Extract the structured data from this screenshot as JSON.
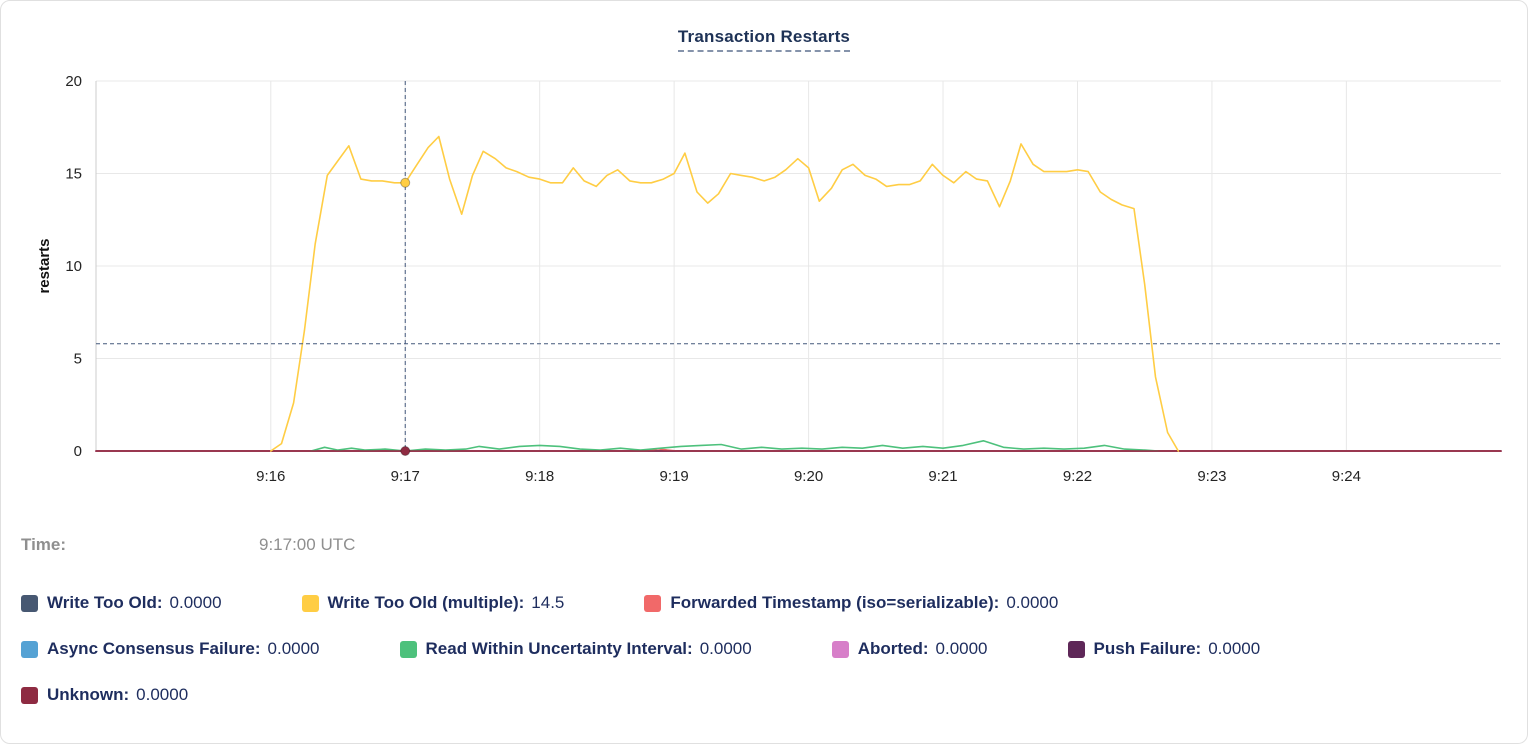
{
  "time_readout": {
    "label": "Time:",
    "value": "9:17:00 UTC"
  },
  "legend": {
    "rows": [
      [
        {
          "label": "Write Too Old:",
          "value": "0.0000",
          "color": "#475872"
        },
        {
          "label": "Write Too Old (multiple):",
          "value": "14.5",
          "color": "#FFCD44"
        },
        {
          "label": "Forwarded Timestamp (iso=serializable):",
          "value": "0.0000",
          "color": "#F16969"
        }
      ],
      [
        {
          "label": "Async Consensus Failure:",
          "value": "0.0000",
          "color": "#55A2D4"
        },
        {
          "label": "Read Within Uncertainty Interval:",
          "value": "0.0000",
          "color": "#4DC17C"
        },
        {
          "label": "Aborted:",
          "value": "0.0000",
          "color": "#D77FC9"
        },
        {
          "label": "Push Failure:",
          "value": "0.0000",
          "color": "#5E2758"
        }
      ],
      [
        {
          "label": "Unknown:",
          "value": "0.0000",
          "color": "#8E2B42"
        }
      ]
    ]
  },
  "chart_data": {
    "type": "line",
    "title": "Transaction Restarts",
    "xlabel": "",
    "ylabel": "restarts",
    "ylim": [
      0,
      20
    ],
    "yticks": [
      0,
      5,
      10,
      15,
      20
    ],
    "x_domain_minutes": [
      14.7,
      25.15
    ],
    "xticks": [
      {
        "label": "9:16",
        "minute": 16
      },
      {
        "label": "9:17",
        "minute": 17
      },
      {
        "label": "9:18",
        "minute": 18
      },
      {
        "label": "9:19",
        "minute": 19
      },
      {
        "label": "9:20",
        "minute": 20
      },
      {
        "label": "9:21",
        "minute": 21
      },
      {
        "label": "9:22",
        "minute": 22
      },
      {
        "label": "9:23",
        "minute": 23
      },
      {
        "label": "9:24",
        "minute": 24
      }
    ],
    "grid": true,
    "legend_position": "bottom",
    "crosshair": {
      "time": "9:17",
      "minute": 17,
      "hline_value": 5.8,
      "color": "#44587C",
      "points": [
        {
          "series": "Write Too Old (multiple)",
          "minute": 17,
          "value": 14.5,
          "color": "#FFCD44"
        },
        {
          "series": "Unknown",
          "minute": 17,
          "value": 0,
          "color": "#8E2B42"
        }
      ]
    },
    "series": [
      {
        "name": "Write Too Old",
        "color": "#475872",
        "points": [
          [
            14.7,
            0
          ],
          [
            25.15,
            0
          ]
        ]
      },
      {
        "name": "Async Consensus Failure",
        "color": "#55A2D4",
        "points": [
          [
            14.7,
            0
          ],
          [
            25.15,
            0
          ]
        ]
      },
      {
        "name": "Aborted",
        "color": "#D77FC9",
        "points": [
          [
            14.7,
            0
          ],
          [
            25.15,
            0
          ]
        ]
      },
      {
        "name": "Push Failure",
        "color": "#5E2758",
        "points": [
          [
            14.7,
            0
          ],
          [
            25.15,
            0
          ]
        ]
      },
      {
        "name": "Forwarded Timestamp (iso=serializable)",
        "color": "#F16969",
        "points": [
          [
            14.7,
            0
          ],
          [
            18.8,
            0
          ],
          [
            18.88,
            0.12
          ],
          [
            18.95,
            0.05
          ],
          [
            19.02,
            0
          ],
          [
            25.15,
            0
          ]
        ]
      },
      {
        "name": "Read Within Uncertainty Interval",
        "color": "#4DC17C",
        "points": [
          [
            16.3,
            0
          ],
          [
            16.4,
            0.2
          ],
          [
            16.5,
            0.05
          ],
          [
            16.6,
            0.15
          ],
          [
            16.7,
            0.05
          ],
          [
            16.85,
            0.1
          ],
          [
            17.0,
            0
          ],
          [
            17.15,
            0.1
          ],
          [
            17.3,
            0.05
          ],
          [
            17.45,
            0.1
          ],
          [
            17.55,
            0.25
          ],
          [
            17.7,
            0.1
          ],
          [
            17.85,
            0.25
          ],
          [
            18.0,
            0.3
          ],
          [
            18.15,
            0.25
          ],
          [
            18.3,
            0.1
          ],
          [
            18.45,
            0.05
          ],
          [
            18.6,
            0.15
          ],
          [
            18.75,
            0.05
          ],
          [
            18.9,
            0.15
          ],
          [
            19.05,
            0.25
          ],
          [
            19.2,
            0.3
          ],
          [
            19.35,
            0.35
          ],
          [
            19.5,
            0.1
          ],
          [
            19.65,
            0.2
          ],
          [
            19.8,
            0.1
          ],
          [
            19.95,
            0.15
          ],
          [
            20.1,
            0.1
          ],
          [
            20.25,
            0.2
          ],
          [
            20.4,
            0.15
          ],
          [
            20.55,
            0.3
          ],
          [
            20.7,
            0.15
          ],
          [
            20.85,
            0.25
          ],
          [
            21.0,
            0.15
          ],
          [
            21.15,
            0.3
          ],
          [
            21.3,
            0.55
          ],
          [
            21.45,
            0.2
          ],
          [
            21.6,
            0.1
          ],
          [
            21.75,
            0.15
          ],
          [
            21.9,
            0.1
          ],
          [
            22.05,
            0.15
          ],
          [
            22.2,
            0.3
          ],
          [
            22.35,
            0.1
          ],
          [
            22.5,
            0.05
          ],
          [
            22.6,
            0
          ]
        ]
      },
      {
        "name": "Unknown",
        "color": "#8E2B42",
        "points": [
          [
            14.7,
            0
          ],
          [
            25.15,
            0
          ]
        ]
      },
      {
        "name": "Write Too Old (multiple)",
        "color": "#FFCD44",
        "points": [
          [
            16.0,
            0
          ],
          [
            16.08,
            0.4
          ],
          [
            16.17,
            2.6
          ],
          [
            16.25,
            6.5
          ],
          [
            16.33,
            11.2
          ],
          [
            16.42,
            14.9
          ],
          [
            16.5,
            15.7
          ],
          [
            16.58,
            16.5
          ],
          [
            16.67,
            14.7
          ],
          [
            16.75,
            14.6
          ],
          [
            16.83,
            14.6
          ],
          [
            16.92,
            14.5
          ],
          [
            17.0,
            14.5
          ],
          [
            17.08,
            15.4
          ],
          [
            17.17,
            16.4
          ],
          [
            17.25,
            17.0
          ],
          [
            17.33,
            14.7
          ],
          [
            17.42,
            12.8
          ],
          [
            17.5,
            14.9
          ],
          [
            17.58,
            16.2
          ],
          [
            17.67,
            15.8
          ],
          [
            17.75,
            15.3
          ],
          [
            17.83,
            15.1
          ],
          [
            17.92,
            14.8
          ],
          [
            18.0,
            14.7
          ],
          [
            18.08,
            14.5
          ],
          [
            18.17,
            14.5
          ],
          [
            18.25,
            15.3
          ],
          [
            18.33,
            14.6
          ],
          [
            18.42,
            14.3
          ],
          [
            18.5,
            14.9
          ],
          [
            18.58,
            15.2
          ],
          [
            18.67,
            14.6
          ],
          [
            18.75,
            14.5
          ],
          [
            18.83,
            14.5
          ],
          [
            18.92,
            14.7
          ],
          [
            19.0,
            15.0
          ],
          [
            19.08,
            16.1
          ],
          [
            19.17,
            14.0
          ],
          [
            19.25,
            13.4
          ],
          [
            19.33,
            13.9
          ],
          [
            19.42,
            15.0
          ],
          [
            19.5,
            14.9
          ],
          [
            19.58,
            14.8
          ],
          [
            19.67,
            14.6
          ],
          [
            19.75,
            14.8
          ],
          [
            19.83,
            15.2
          ],
          [
            19.92,
            15.8
          ],
          [
            20.0,
            15.3
          ],
          [
            20.08,
            13.5
          ],
          [
            20.17,
            14.2
          ],
          [
            20.25,
            15.2
          ],
          [
            20.33,
            15.5
          ],
          [
            20.42,
            14.9
          ],
          [
            20.5,
            14.7
          ],
          [
            20.58,
            14.3
          ],
          [
            20.67,
            14.4
          ],
          [
            20.75,
            14.4
          ],
          [
            20.83,
            14.6
          ],
          [
            20.92,
            15.5
          ],
          [
            21.0,
            14.9
          ],
          [
            21.08,
            14.5
          ],
          [
            21.17,
            15.1
          ],
          [
            21.25,
            14.7
          ],
          [
            21.33,
            14.6
          ],
          [
            21.42,
            13.2
          ],
          [
            21.5,
            14.6
          ],
          [
            21.58,
            16.6
          ],
          [
            21.67,
            15.5
          ],
          [
            21.75,
            15.1
          ],
          [
            21.83,
            15.1
          ],
          [
            21.92,
            15.1
          ],
          [
            22.0,
            15.2
          ],
          [
            22.08,
            15.1
          ],
          [
            22.17,
            14.0
          ],
          [
            22.25,
            13.6
          ],
          [
            22.33,
            13.3
          ],
          [
            22.42,
            13.1
          ],
          [
            22.5,
            9.0
          ],
          [
            22.58,
            4.0
          ],
          [
            22.67,
            1.0
          ],
          [
            22.75,
            0
          ]
        ]
      }
    ]
  }
}
